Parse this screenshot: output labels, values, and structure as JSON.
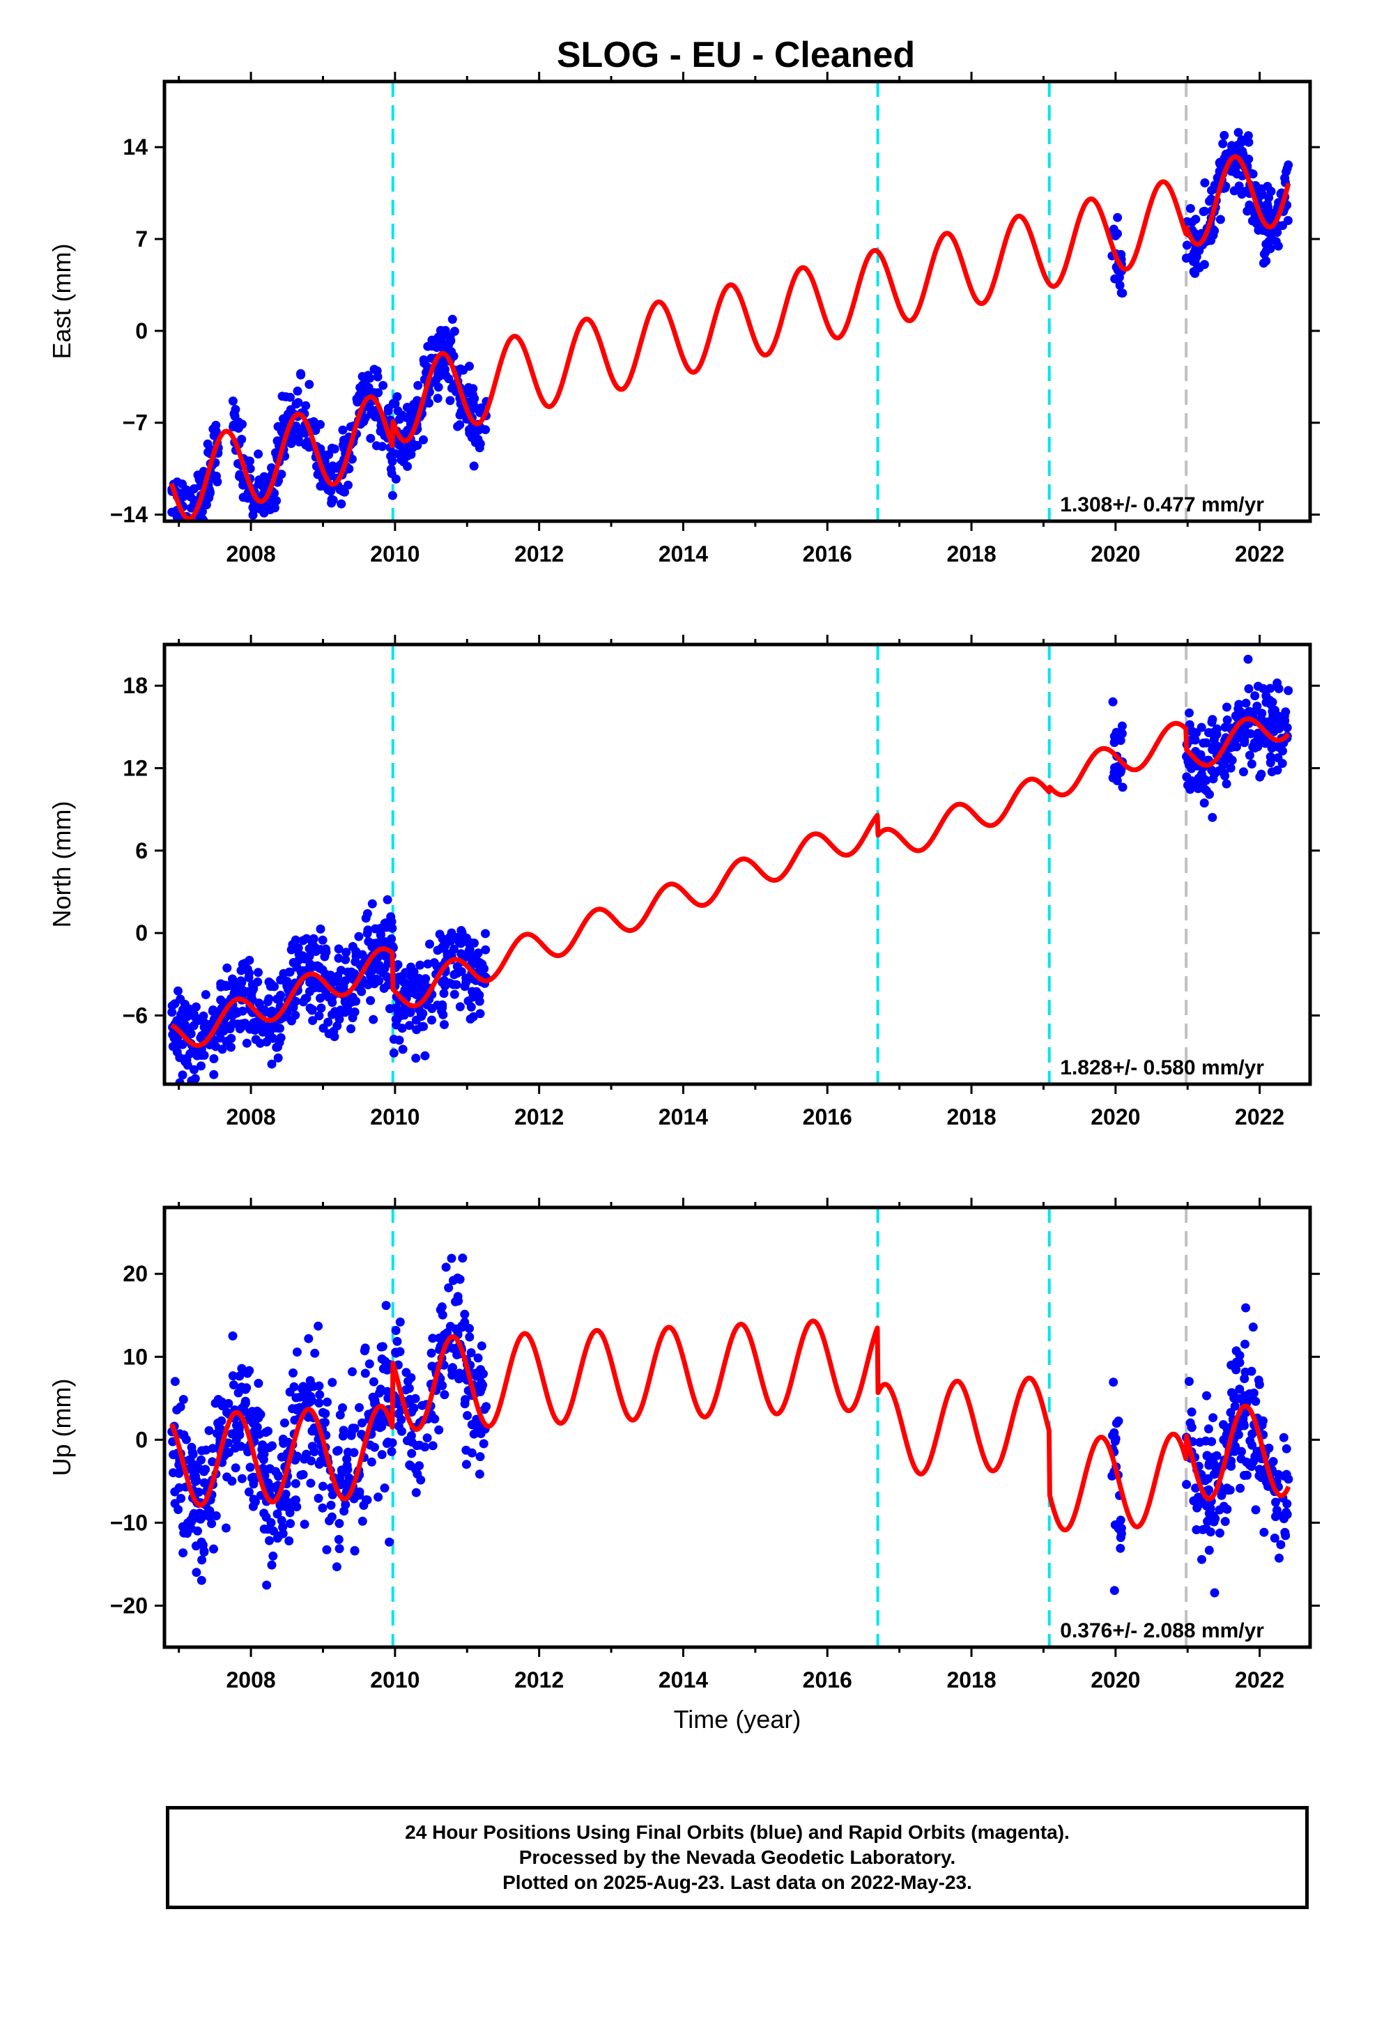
{
  "colors": {
    "final_orbits": "#0000ff",
    "model_fit": "#ff0000",
    "equipment_change": "#00e5ee",
    "other_event": "#c0c0c0",
    "frame": "#000000"
  },
  "chart_data": {
    "title": "SLOG  - EU - Cleaned",
    "xlabel": "Time (year)",
    "xlim": [
      2006.8,
      2022.7
    ],
    "xticks": [
      "2008",
      "2010",
      "2012",
      "2014",
      "2016",
      "2018",
      "2020",
      "2022"
    ],
    "panels": [
      {
        "type": "scatter",
        "ylabel": "East (mm)",
        "ylim": [
          -14.5,
          19
        ],
        "yticks": [
          "-14",
          "-7",
          "0",
          "7",
          "14"
        ],
        "rate": "1.308+/- 0.477 mm/yr",
        "event_lines": [
          {
            "x": 2009.97,
            "kind": "equipment"
          },
          {
            "x": 2016.7,
            "kind": "equipment"
          },
          {
            "x": 2019.08,
            "kind": "equipment"
          },
          {
            "x": 2020.98,
            "kind": "other"
          }
        ],
        "model": {
          "type": "line",
          "series_color": "#ff0000",
          "linear_start": -11.5,
          "rate_mm_yr": 1.308,
          "annual_amp": 3.0,
          "annual_phase_yr": 0.4,
          "offsets": [
            {
              "x": 2009.97,
              "d": 2.0
            },
            {
              "x": 2016.7,
              "d": 0.0
            },
            {
              "x": 2019.08,
              "d": 0.0
            }
          ],
          "tail_adjust": [
            {
              "x": 2020.98,
              "d": 0.6
            }
          ]
        },
        "data_segments": [
          [
            2006.9,
            2007.55
          ],
          [
            2007.75,
            2008.05
          ],
          [
            2008.1,
            2011.27
          ],
          [
            2019.95,
            2020.1
          ],
          [
            2020.98,
            2022.4
          ]
        ],
        "scatter_sigma": 1.3,
        "scatter_per_year": 150
      },
      {
        "type": "scatter",
        "ylabel": "North (mm)",
        "ylim": [
          -11,
          21
        ],
        "yticks": [
          "-6",
          "0",
          "6",
          "12",
          "18"
        ],
        "rate": "1.828+/- 0.580 mm/yr",
        "event_lines": [
          {
            "x": 2009.97,
            "kind": "equipment"
          },
          {
            "x": 2016.7,
            "kind": "equipment"
          },
          {
            "x": 2019.08,
            "kind": "equipment"
          },
          {
            "x": 2020.98,
            "kind": "other"
          }
        ],
        "model": {
          "type": "line",
          "series_color": "#ff0000",
          "linear_start": -7.5,
          "rate_mm_yr": 1.828,
          "annual_amp": 1.2,
          "annual_phase_yr": 0.55,
          "offsets": [
            {
              "x": 2009.97,
              "d": -2.6
            },
            {
              "x": 2016.7,
              "d": -1.5
            },
            {
              "x": 2019.08,
              "d": 0.4
            },
            {
              "x": 2020.98,
              "d": -1.5
            }
          ],
          "tail_adjust": []
        },
        "data_segments": [
          [
            2006.9,
            2011.27
          ],
          [
            2019.95,
            2020.1
          ],
          [
            2020.98,
            2022.4
          ]
        ],
        "scatter_sigma": 1.6,
        "scatter_per_year": 150
      },
      {
        "type": "scatter",
        "ylabel": "Up (mm)",
        "ylim": [
          -25,
          28
        ],
        "yticks": [
          "-20",
          "-10",
          "0",
          "10",
          "20"
        ],
        "rate": "0.376+/- 2.088 mm/yr",
        "event_lines": [
          {
            "x": 2009.97,
            "kind": "equipment"
          },
          {
            "x": 2016.7,
            "kind": "equipment"
          },
          {
            "x": 2019.08,
            "kind": "equipment"
          },
          {
            "x": 2020.98,
            "kind": "other"
          }
        ],
        "model": {
          "type": "line",
          "series_color": "#ff0000",
          "linear_start": -2.5,
          "rate_mm_yr": 0.376,
          "annual_amp": 5.5,
          "annual_phase_yr": 0.55,
          "offsets": [
            {
              "x": 2009.97,
              "d": 8.0
            },
            {
              "x": 2016.7,
              "d": -8.0
            },
            {
              "x": 2019.08,
              "d": -7.5
            },
            {
              "x": 2020.98,
              "d": 3.0
            }
          ],
          "tail_adjust": []
        },
        "data_segments": [
          [
            2006.9,
            2011.27
          ],
          [
            2019.95,
            2020.1
          ],
          [
            2020.98,
            2022.4
          ]
        ],
        "scatter_sigma": 4.5,
        "scatter_per_year": 150
      }
    ]
  },
  "footer": {
    "line1": "24 Hour Positions Using Final Orbits (blue) and Rapid Orbits (magenta).",
    "line2": "Processed by the Nevada Geodetic Laboratory.",
    "line3": "Plotted on 2025-Aug-23. Last data on 2022-May-23."
  }
}
